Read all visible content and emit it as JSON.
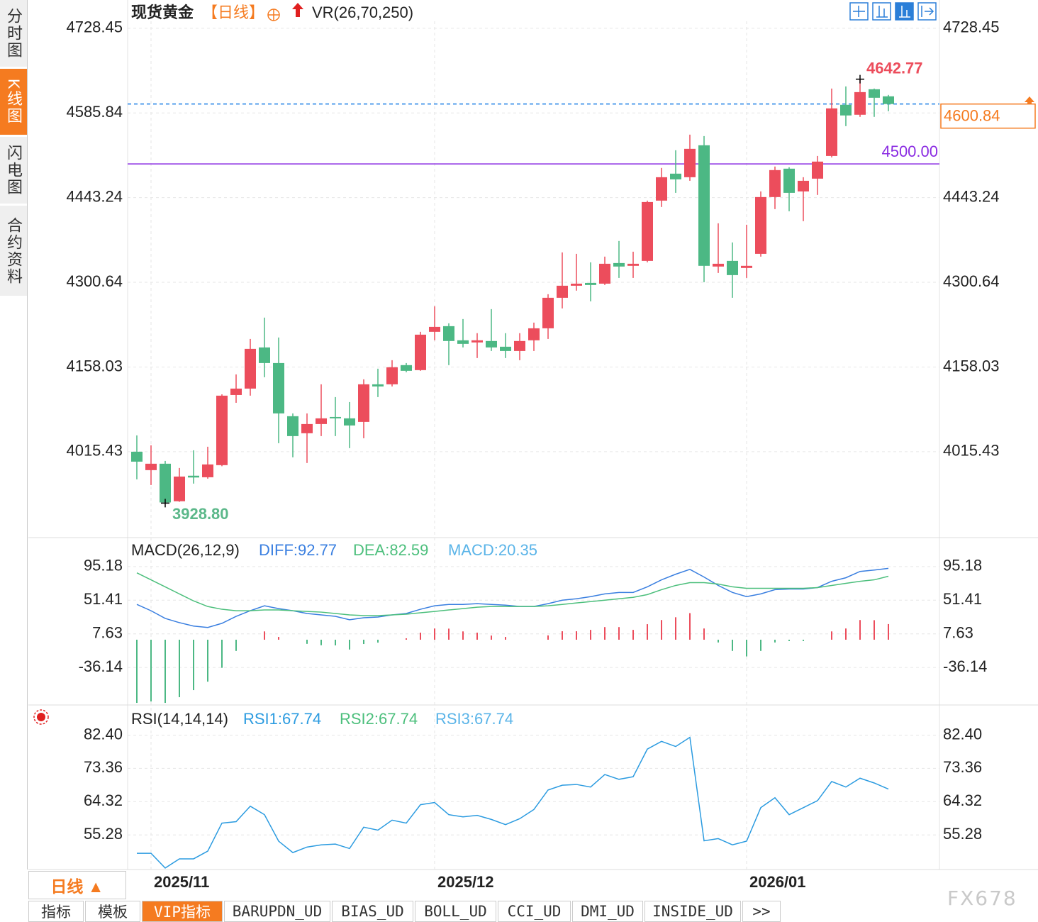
{
  "sidebar": {
    "tabs": [
      "分时图",
      "K线图",
      "闪电图",
      "合约资料"
    ],
    "active": 1
  },
  "period_button": "日线 ▲",
  "bottom_tabs": {
    "items": [
      "指标",
      "模板",
      "VIP指标",
      "BARUPDN_UD",
      "BIAS_UD",
      "BOLL_UD",
      "CCI_UD",
      "DMI_UD",
      "INSIDE_UD",
      ">>"
    ],
    "active": 2
  },
  "watermark": "FX678",
  "chart_data": [
    {
      "type": "candlestick",
      "title": "现货黄金",
      "period": "【日线】",
      "indicator": "VR(26,70,250)",
      "categories": [
        null,
        "2025/11",
        null,
        null,
        null,
        null,
        null,
        null,
        null,
        null,
        null,
        null,
        null,
        null,
        null,
        null,
        null,
        null,
        null,
        null,
        null,
        "2025/12",
        null,
        null,
        null,
        null,
        null,
        null,
        null,
        null,
        null,
        null,
        null,
        null,
        null,
        null,
        null,
        null,
        null,
        null,
        null,
        null,
        null,
        "2026/01",
        null,
        null,
        null,
        null,
        null,
        null,
        null,
        null,
        null,
        null
      ],
      "open": [
        4015.4,
        3984.4,
        3995.2,
        3932,
        3975,
        3972.4,
        3992.8,
        4110.9,
        4121.7,
        4191.0,
        4164.7,
        4075.2,
        4046.5,
        4062.0,
        4073.9,
        4071.6,
        4065.6,
        4128.9,
        4128.9,
        4161.2,
        4152.8,
        4217.3,
        4226.8,
        4203,
        4199.4,
        4201.8,
        4192.2,
        4185.0,
        4203.0,
        4223.2,
        4274.6,
        4294.9,
        4299.6,
        4298.4,
        4333.1,
        4328.4,
        4336.7,
        4438.2,
        4483.6,
        4477.6,
        4531.4,
        4327.2,
        4336.7,
        4324.8,
        4348.6,
        4444.2,
        4492.0,
        4453.7,
        4475.2,
        4513.4,
        4599.5,
        4582.8,
        4625.7,
        4613.8
      ],
      "high": [
        4042.9,
        4026.2,
        3999.9,
        3988.0,
        4017.8,
        4023.8,
        4112,
        4145.6,
        4205.3,
        4241.2,
        4207.7,
        4079.9,
        4079.9,
        4128.9,
        4107.4,
        4099.0,
        4137.3,
        4155.2,
        4169.5,
        4164.7,
        4217.3,
        4260.3,
        4231.6,
        4238.8,
        4215,
        4255.5,
        4215,
        4215,
        4232.8,
        4280.6,
        4351.0,
        4348.6,
        4334.3,
        4343.9,
        4370.2,
        4352.2,
        4438.2,
        4493.2,
        4523.0,
        4549.3,
        4546.9,
        4400.0,
        4367.8,
        4397.6,
        4453.7,
        4495.6,
        4494.4,
        4477.6,
        4513.4,
        4626.9,
        4630.5,
        4642.77,
        4626.9,
        4616.2
      ],
      "low": [
        3968.9,
        3959.3,
        3928.8,
        3931,
        3961.7,
        3970,
        3991,
        4097.8,
        4109.8,
        4140.8,
        4029.8,
        4006.0,
        3996.4,
        4041.7,
        4041.7,
        4021.4,
        4038.1,
        4107.4,
        4125.3,
        4149.2,
        4151.6,
        4203.0,
        4161.2,
        4191.0,
        4173.1,
        4185.0,
        4173.1,
        4169.5,
        4185.0,
        4205.3,
        4256.7,
        4286.6,
        4268.6,
        4296.1,
        4308.0,
        4308.0,
        4334.3,
        4427.5,
        4451.3,
        4471.6,
        4300.9,
        4316.4,
        4274.6,
        4308.0,
        4343.9,
        4423.9,
        4420.3,
        4403.6,
        4447.8,
        4511.0,
        4563.6,
        4579.2,
        4579.2,
        4588.7
      ],
      "close": [
        3998.7,
        3995.2,
        3930,
        3973.6,
        3972,
        3994.0,
        4109.8,
        4121.7,
        4188.6,
        4164.7,
        4079.9,
        4041.7,
        4062.0,
        4071.6,
        4071.6,
        4059.6,
        4128.9,
        4125.3,
        4157.6,
        4151.6,
        4212.5,
        4225.6,
        4201.8,
        4197,
        4203.0,
        4191.0,
        4185.0,
        4201.8,
        4223.2,
        4274.6,
        4294.9,
        4298.4,
        4296.1,
        4331.9,
        4327.2,
        4331.9,
        4435.8,
        4477.6,
        4474.0,
        4525.4,
        4328.4,
        4331.9,
        4312.8,
        4328.4,
        4444.2,
        4489.6,
        4451.3,
        4471.6,
        4503.9,
        4593.5,
        4581.6,
        4620.9,
        4611.4,
        4600.84
      ],
      "up_color": "#ec4d5c",
      "down_color": "#4cb884",
      "ylim": [
        3872,
        4776
      ],
      "yticks": [
        4728.45,
        4585.84,
        4443.24,
        4300.64,
        4158.03,
        4015.43
      ],
      "grid": true,
      "high_label": {
        "value": 4642.77,
        "color": "#ec4d5c"
      },
      "low_label": {
        "value": 3928.8,
        "label": "3928.80",
        "color": "#5cb88a"
      },
      "hline": {
        "value": 4500,
        "label": "4500.00",
        "color": "#8a2be2"
      },
      "last_price": {
        "value": 4600.84,
        "color": "#1e7fe6",
        "label_color": "#f57b20"
      }
    },
    {
      "type": "macd",
      "title": "MACD(26,12,9)",
      "series": [
        {
          "name": "DIFF:92.77",
          "color": "#3a7fe0",
          "style": "line",
          "values": [
            45.9,
            37.7,
            27.7,
            22.2,
            17.7,
            15.9,
            21.3,
            30.4,
            37.7,
            44.1,
            40.5,
            37.7,
            34.1,
            32.3,
            30.4,
            25.9,
            28.6,
            29.5,
            32.3,
            34.1,
            39.6,
            44.1,
            45.9,
            45.9,
            46.9,
            45.9,
            45.0,
            43.2,
            43.2,
            46.9,
            51.4,
            53.3,
            56.0,
            59.6,
            61.5,
            61.5,
            68.8,
            77.9,
            85.2,
            91.5,
            81.5,
            70.6,
            61.5,
            56.0,
            59.6,
            65.1,
            66.0,
            66.0,
            67.8,
            76.0,
            80.6,
            88.8,
            90.6,
            92.77
          ]
        },
        {
          "name": "DEA:82.59",
          "color": "#4cbf7c",
          "style": "line",
          "values": [
            87.0,
            77.9,
            68.8,
            59.6,
            50.5,
            43.2,
            39.6,
            37.7,
            37.7,
            38.7,
            38.7,
            37.7,
            36.8,
            35.9,
            34.1,
            32.3,
            31.4,
            31.4,
            32.3,
            33.2,
            35.0,
            36.8,
            38.7,
            40.5,
            42.3,
            43.2,
            43.2,
            43.2,
            43.2,
            44.1,
            45.9,
            47.8,
            49.6,
            51.4,
            53.3,
            55.1,
            58.7,
            65.1,
            70.6,
            74.2,
            74.2,
            72.4,
            68.8,
            66.9,
            66.9,
            66.9,
            66.9,
            66.9,
            67.8,
            70.6,
            73.3,
            76.0,
            77.9,
            82.59
          ]
        },
        {
          "name": "MACD:20.35",
          "color": "#5ab4e8",
          "style": "bar",
          "values": [
            -82.2,
            -80.4,
            -82.2,
            -74.8,
            -65.6,
            -54.6,
            -36.6,
            -14.6,
            0,
            10.8,
            3.6,
            0,
            -5.4,
            -7.2,
            -7.4,
            -12.8,
            -5.6,
            -3.8,
            0,
            1.8,
            9.2,
            14.6,
            14.4,
            10.8,
            9.2,
            5.4,
            3.6,
            0,
            0,
            5.6,
            11.0,
            11.0,
            12.8,
            16.4,
            16.4,
            12.8,
            20.2,
            25.6,
            29.2,
            34.6,
            14.6,
            -3.6,
            -14.6,
            -21.8,
            -14.6,
            -3.6,
            -1.8,
            -1.8,
            0,
            10.8,
            14.6,
            25.6,
            25.4,
            20.35
          ]
        }
      ],
      "up_color": "#ec4d5c",
      "down_color": "#4cb884",
      "ylim": [
        -84,
        131
      ],
      "yticks": [
        95.18,
        51.41,
        7.63,
        -36.14
      ],
      "grid": true
    },
    {
      "type": "line",
      "title": "RSI(14,14,14)",
      "series": [
        {
          "name": "RSI1:67.74",
          "color": "#2b9be0",
          "values": [
            50.3,
            50.3,
            46.3,
            48.8,
            48.8,
            50.9,
            58.5,
            58.9,
            63.1,
            60.8,
            53.6,
            50.5,
            52.0,
            52.6,
            52.8,
            51.6,
            57.4,
            56.6,
            59.3,
            58.5,
            63.5,
            64.1,
            60.8,
            60.2,
            60.6,
            59.5,
            58.1,
            59.7,
            62.2,
            67.5,
            68.8,
            69.0,
            68.3,
            71.7,
            70.4,
            71.1,
            78.6,
            80.7,
            79.3,
            81.8,
            53.7,
            54.3,
            52.6,
            53.6,
            62.7,
            65.4,
            60.8,
            62.7,
            64.6,
            69.8,
            68.3,
            70.7,
            69.4,
            67.74
          ]
        }
      ],
      "legend_extra": [
        {
          "text": "RSI2:67.74",
          "color": "#4cbf7c"
        },
        {
          "text": "RSI3:67.74",
          "color": "#5ab4e8"
        }
      ],
      "ylim": [
        45.9,
        90.2
      ],
      "yticks": [
        {
          "value": 82.4,
          "label": "82.40"
        },
        73.36,
        64.32,
        55.28
      ],
      "grid": true
    }
  ]
}
